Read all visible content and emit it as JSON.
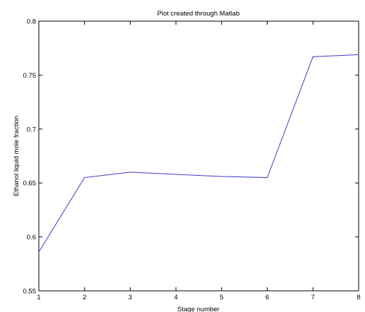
{
  "chart_data": {
    "type": "line",
    "title": "Plot created through Matlab",
    "xlabel": "Stage number",
    "ylabel": "Ethanol liquid mole fraction",
    "xlim": [
      1,
      8
    ],
    "ylim": [
      0.55,
      0.8
    ],
    "x_ticks": [
      "1",
      "2",
      "3",
      "4",
      "5",
      "6",
      "7",
      "8"
    ],
    "y_ticks": [
      "0.55",
      "0.6",
      "0.65",
      "0.7",
      "0.75",
      "0.8"
    ],
    "grid": false,
    "series": [
      {
        "x": [
          1,
          2,
          3,
          4,
          5,
          6,
          7,
          8
        ],
        "values": [
          0.586,
          0.655,
          0.66,
          0.658,
          0.656,
          0.655,
          0.767,
          0.769
        ],
        "color": "#3b3bc9"
      }
    ]
  }
}
